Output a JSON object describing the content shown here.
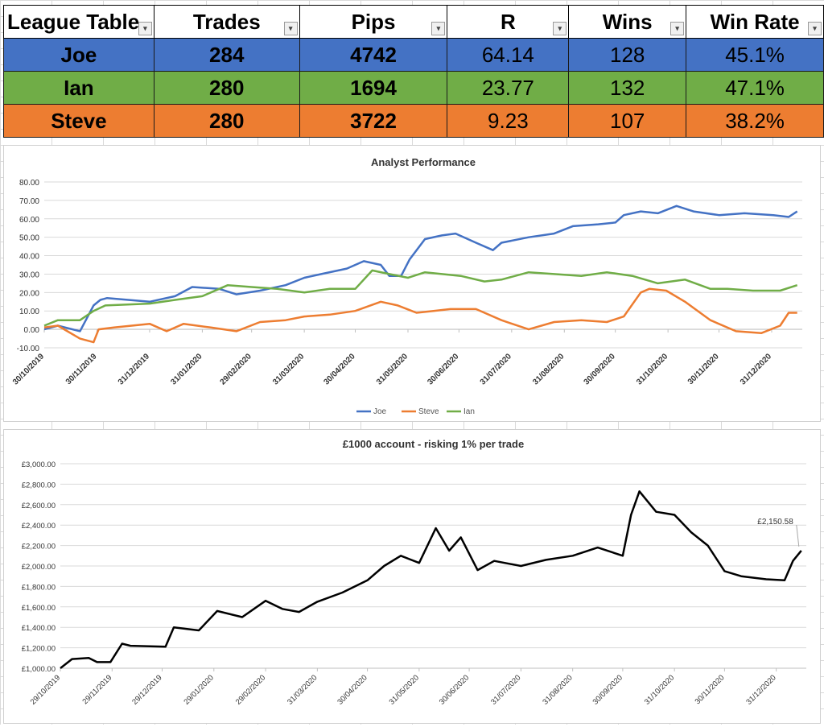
{
  "league_table": {
    "headers": [
      "League Table",
      "Trades",
      "Pips",
      "R",
      "Wins",
      "Win Rate"
    ],
    "rows": [
      {
        "name": "Joe",
        "trades": "284",
        "pips": "4742",
        "r": "64.14",
        "wins": "128",
        "win_rate": "45.1%",
        "color": "#4472c4"
      },
      {
        "name": "Ian",
        "trades": "280",
        "pips": "1694",
        "r": "23.77",
        "wins": "132",
        "win_rate": "47.1%",
        "color": "#70ad47"
      },
      {
        "name": "Steve",
        "trades": "280",
        "pips": "3722",
        "r": "9.23",
        "wins": "107",
        "win_rate": "38.2%",
        "color": "#ed7d31"
      }
    ]
  },
  "chart_data": [
    {
      "type": "line",
      "title": "Analyst Performance",
      "xlabel": "",
      "ylabel": "",
      "ylim": [
        -10,
        80
      ],
      "y_ticks": [
        "-10.00",
        "0.00",
        "10.00",
        "20.00",
        "30.00",
        "40.00",
        "50.00",
        "60.00",
        "70.00",
        "80.00"
      ],
      "x_ticks": [
        "30/10/2019",
        "30/11/2019",
        "31/12/2019",
        "31/01/2020",
        "29/02/2020",
        "31/03/2020",
        "30/04/2020",
        "31/05/2020",
        "30/06/2020",
        "31/07/2020",
        "31/08/2020",
        "30/09/2020",
        "31/10/2020",
        "30/11/2020",
        "31/12/2020"
      ],
      "grid": true,
      "legend": "bottom",
      "series": [
        {
          "name": "Joe",
          "color": "#4472c4",
          "x": [
            "2019-10-30",
            "2019-11-07",
            "2019-11-20",
            "2019-11-28",
            "2019-12-02",
            "2019-12-06",
            "2019-12-31",
            "2020-01-15",
            "2020-01-25",
            "2020-02-10",
            "2020-02-20",
            "2020-03-05",
            "2020-03-20",
            "2020-03-31",
            "2020-04-10",
            "2020-04-25",
            "2020-05-05",
            "2020-05-15",
            "2020-05-20",
            "2020-05-27",
            "2020-06-01",
            "2020-06-10",
            "2020-06-20",
            "2020-06-28",
            "2020-07-10",
            "2020-07-20",
            "2020-07-25",
            "2020-08-10",
            "2020-08-25",
            "2020-09-05",
            "2020-09-20",
            "2020-09-30",
            "2020-10-05",
            "2020-10-15",
            "2020-10-25",
            "2020-11-05",
            "2020-11-15",
            "2020-11-30",
            "2020-12-15",
            "2021-01-01",
            "2021-01-10",
            "2021-01-15"
          ],
          "values": [
            0,
            2,
            -1,
            13,
            16,
            17,
            15,
            18,
            23,
            22,
            19,
            21,
            24,
            28,
            30,
            33,
            37,
            35,
            29,
            29,
            38,
            49,
            51,
            52,
            47,
            43,
            47,
            50,
            52,
            56,
            57,
            58,
            62,
            64,
            63,
            67,
            64,
            62,
            63,
            62,
            61,
            64
          ]
        },
        {
          "name": "Steve",
          "color": "#ed7d31",
          "x": [
            "2019-10-30",
            "2019-11-07",
            "2019-11-20",
            "2019-11-28",
            "2019-12-01",
            "2019-12-10",
            "2019-12-31",
            "2020-01-10",
            "2020-01-20",
            "2020-02-05",
            "2020-02-20",
            "2020-03-05",
            "2020-03-20",
            "2020-03-31",
            "2020-04-15",
            "2020-04-30",
            "2020-05-15",
            "2020-05-25",
            "2020-06-05",
            "2020-06-15",
            "2020-06-25",
            "2020-07-10",
            "2020-07-25",
            "2020-08-10",
            "2020-08-25",
            "2020-09-10",
            "2020-09-25",
            "2020-10-05",
            "2020-10-15",
            "2020-10-20",
            "2020-10-30",
            "2020-11-10",
            "2020-11-25",
            "2020-12-10",
            "2020-12-25",
            "2021-01-05",
            "2021-01-10",
            "2021-01-15"
          ],
          "values": [
            1,
            2,
            -5,
            -7,
            0,
            1,
            3,
            -1,
            3,
            1,
            -1,
            4,
            5,
            7,
            8,
            10,
            15,
            13,
            9,
            10,
            11,
            11,
            5,
            0,
            4,
            5,
            4,
            7,
            20,
            22,
            21,
            15,
            5,
            -1,
            -2,
            2,
            9,
            9
          ]
        },
        {
          "name": "Ian",
          "color": "#70ad47",
          "x": [
            "2019-10-30",
            "2019-11-07",
            "2019-11-20",
            "2019-11-28",
            "2019-12-05",
            "2019-12-31",
            "2020-01-15",
            "2020-01-31",
            "2020-02-15",
            "2020-02-29",
            "2020-03-15",
            "2020-03-31",
            "2020-04-15",
            "2020-04-30",
            "2020-05-10",
            "2020-05-20",
            "2020-05-31",
            "2020-06-10",
            "2020-06-20",
            "2020-07-01",
            "2020-07-15",
            "2020-07-25",
            "2020-08-10",
            "2020-08-25",
            "2020-09-10",
            "2020-09-25",
            "2020-10-10",
            "2020-10-25",
            "2020-11-10",
            "2020-11-25",
            "2020-12-05",
            "2020-12-20",
            "2021-01-05",
            "2021-01-15"
          ],
          "values": [
            2,
            5,
            5,
            10,
            13,
            14,
            16,
            18,
            24,
            23,
            22,
            20,
            22,
            22,
            32,
            30,
            28,
            31,
            30,
            29,
            26,
            27,
            31,
            30,
            29,
            31,
            29,
            25,
            27,
            22,
            22,
            21,
            21,
            24
          ]
        }
      ]
    },
    {
      "type": "line",
      "title": "£1000 account - risking 1% per trade",
      "xlabel": "",
      "ylabel": "",
      "ylim": [
        1000,
        3000
      ],
      "y_ticks": [
        "£1,000.00",
        "£1,200.00",
        "£1,400.00",
        "£1,600.00",
        "£1,800.00",
        "£2,000.00",
        "£2,200.00",
        "£2,400.00",
        "£2,600.00",
        "£2,800.00",
        "£3,000.00"
      ],
      "x_ticks": [
        "29/10/2019",
        "29/11/2019",
        "29/12/2019",
        "29/01/2020",
        "29/02/2020",
        "31/03/2020",
        "30/04/2020",
        "31/05/2020",
        "30/06/2020",
        "31/07/2020",
        "31/08/2020",
        "30/09/2020",
        "31/10/2020",
        "30/11/2020",
        "31/12/2020"
      ],
      "grid": true,
      "annotation": "£2,150.58",
      "series": [
        {
          "name": "",
          "color": "#000000",
          "x": [
            "2019-10-29",
            "2019-11-05",
            "2019-11-15",
            "2019-11-20",
            "2019-11-28",
            "2019-12-05",
            "2019-12-10",
            "2019-12-31",
            "2020-01-05",
            "2020-01-20",
            "2020-01-31",
            "2020-02-15",
            "2020-02-29",
            "2020-03-10",
            "2020-03-20",
            "2020-03-31",
            "2020-04-15",
            "2020-04-30",
            "2020-05-10",
            "2020-05-20",
            "2020-05-31",
            "2020-06-10",
            "2020-06-18",
            "2020-06-25",
            "2020-07-05",
            "2020-07-15",
            "2020-07-31",
            "2020-08-15",
            "2020-08-31",
            "2020-09-15",
            "2020-09-30",
            "2020-10-05",
            "2020-10-10",
            "2020-10-20",
            "2020-10-31",
            "2020-11-10",
            "2020-11-20",
            "2020-11-30",
            "2020-12-10",
            "2020-12-25",
            "2021-01-05",
            "2021-01-10",
            "2021-01-15"
          ],
          "values": [
            1000,
            1090,
            1100,
            1060,
            1060,
            1240,
            1220,
            1210,
            1400,
            1370,
            1560,
            1500,
            1660,
            1580,
            1550,
            1650,
            1740,
            1860,
            2000,
            2100,
            2030,
            2370,
            2150,
            2280,
            1960,
            2050,
            2000,
            2060,
            2100,
            2180,
            2100,
            2500,
            2730,
            2530,
            2500,
            2330,
            2200,
            1950,
            1900,
            1870,
            1860,
            2050,
            2150.58
          ]
        }
      ]
    }
  ],
  "legend": {
    "title": ""
  }
}
